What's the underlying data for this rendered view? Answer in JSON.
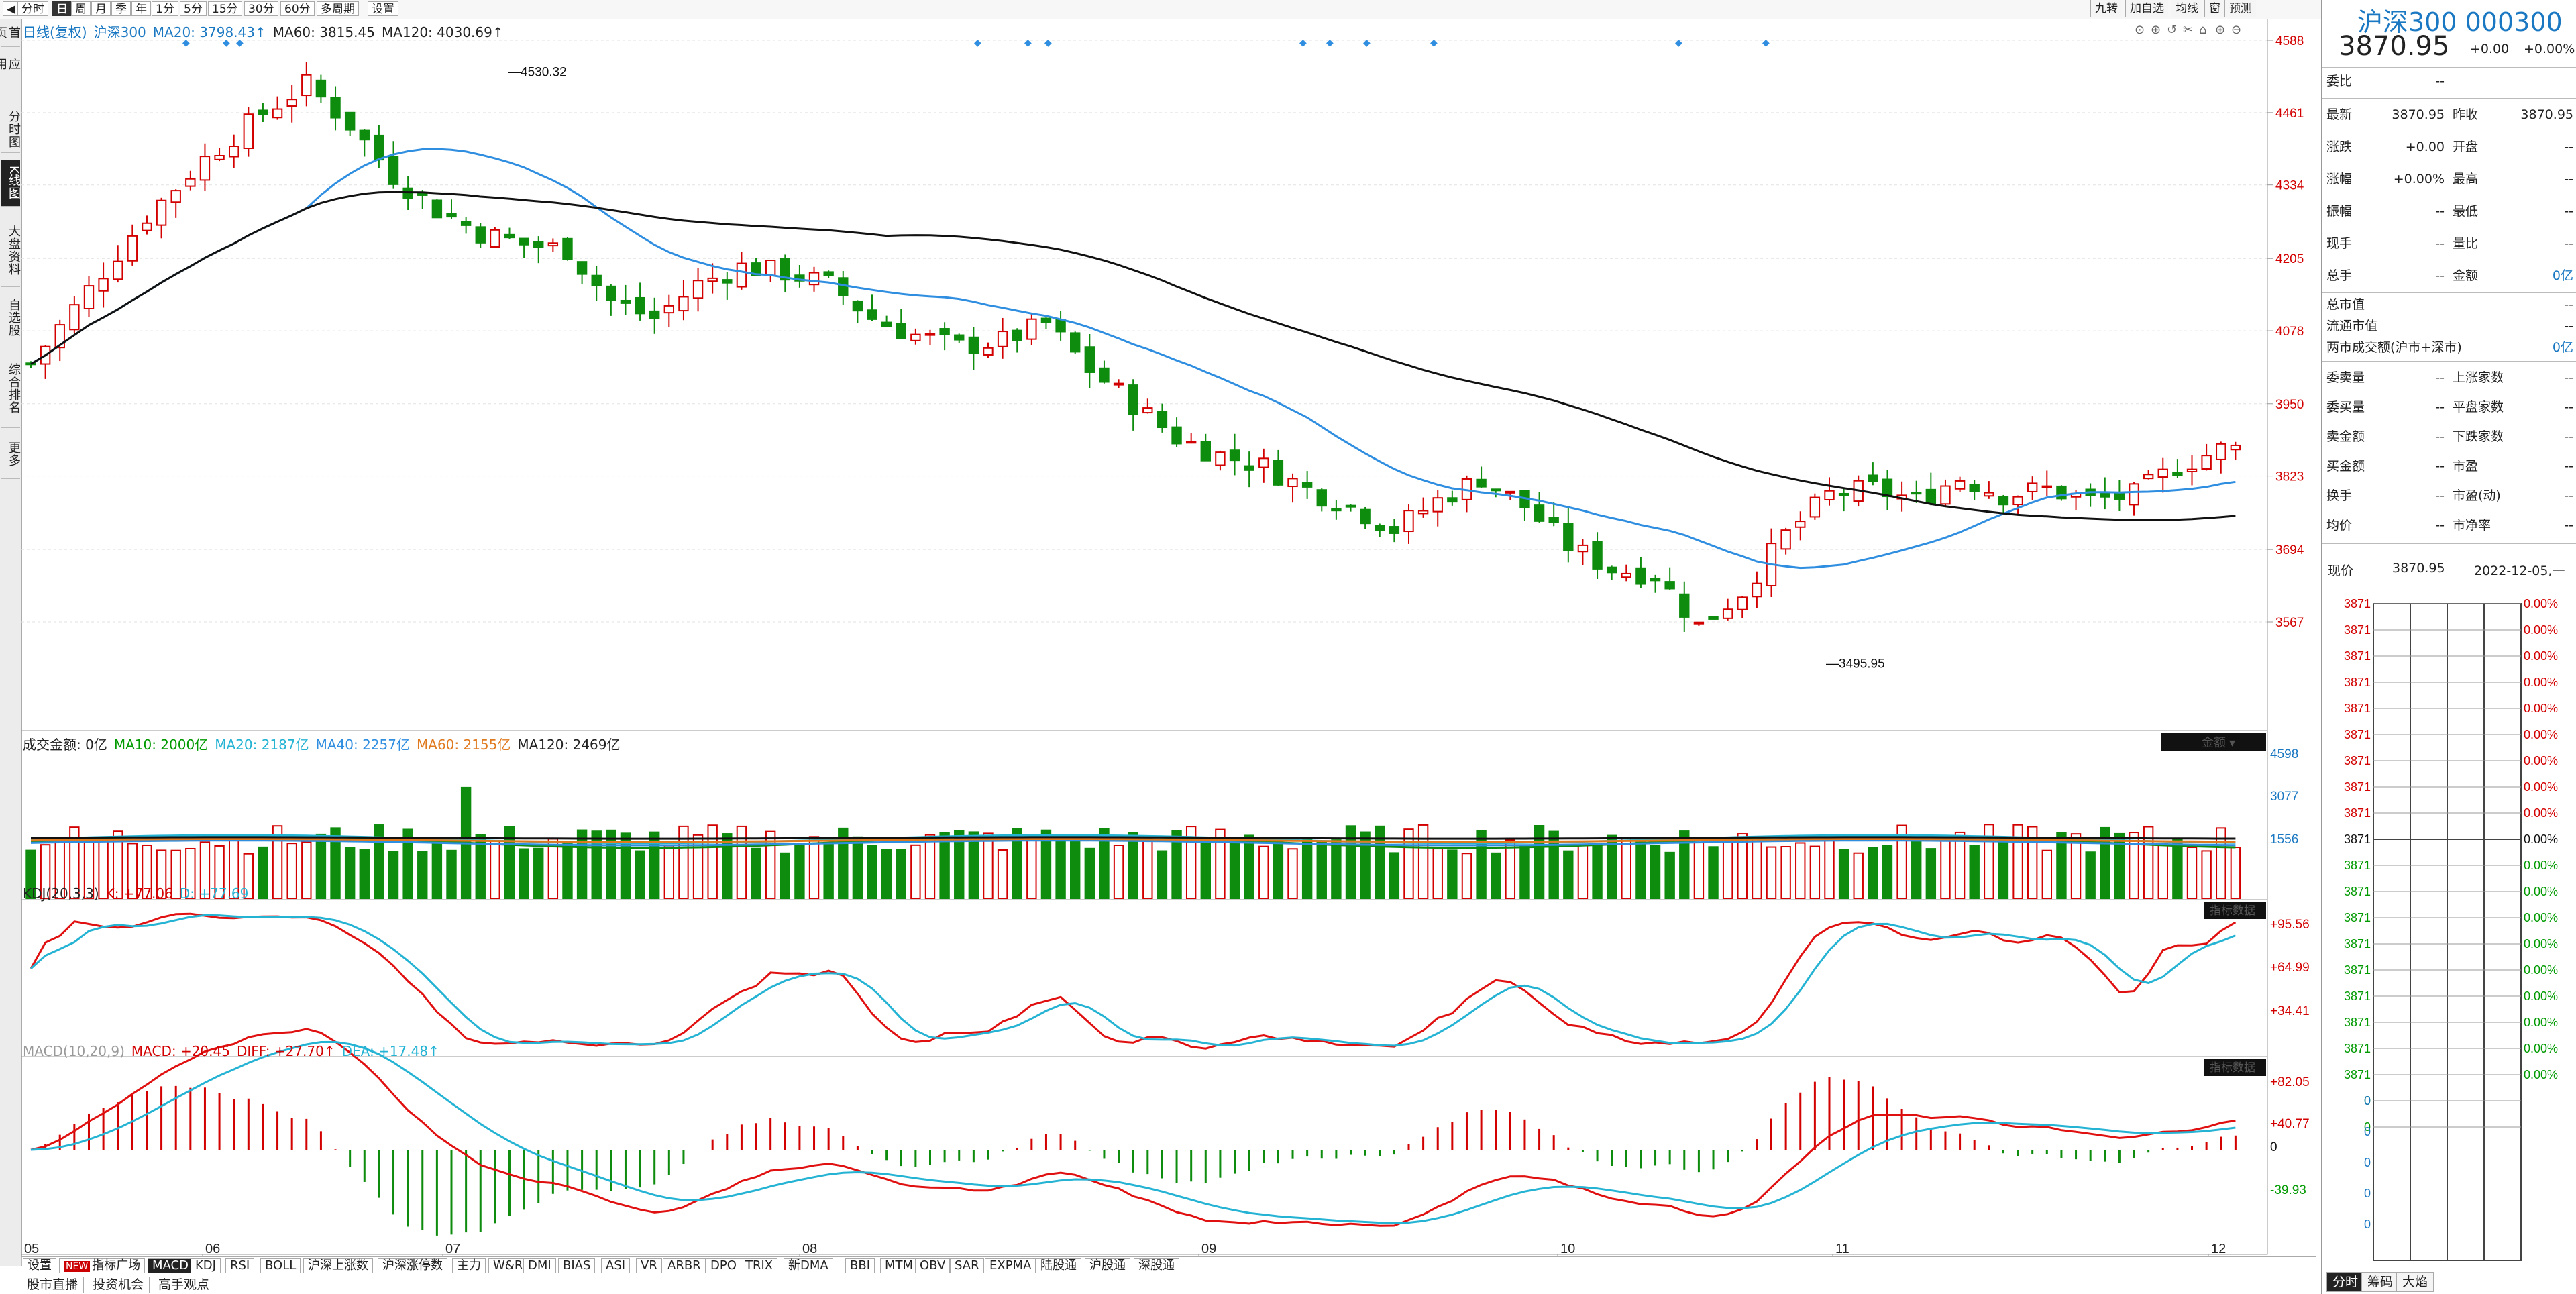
{
  "topbar": {
    "period_tabs": [
      "分时",
      "日",
      "周",
      "月",
      "季",
      "年",
      "1分",
      "5分",
      "15分",
      "30分",
      "60分",
      "多周期",
      "设置"
    ],
    "active_period": "日",
    "right_tools": [
      "九转",
      "加自选",
      "均线",
      "窗",
      "预测"
    ]
  },
  "leftbar": {
    "tabs": [
      "首页",
      "应用",
      "分时图",
      "K线图",
      "大盘资料",
      "自选股",
      "综合排名",
      "更多"
    ],
    "active": "K线图"
  },
  "kline": {
    "legend": {
      "mode": "日线(复权)",
      "name": "沪深300",
      "ma20": "MA20: 3798.43↑",
      "ma60": "MA60: 3815.45",
      "ma120": "MA120: 4030.69↑"
    },
    "high_label": "4530.32",
    "low_label": "3495.95",
    "y_ticks": [
      "4588",
      "4461",
      "4334",
      "4205",
      "4078",
      "3950",
      "3823",
      "3694",
      "3567"
    ],
    "x_ticks": [
      "05",
      "06",
      "07",
      "08",
      "09",
      "10",
      "11",
      "12"
    ],
    "colors": {
      "up": "#d30000",
      "down": "#0e8c0e",
      "ma20": "#2f8ee0",
      "ma120": "#111111",
      "ma60": "#111111"
    }
  },
  "volume": {
    "legend": {
      "label": "成交金额: 0亿",
      "ma10": "MA10: 2000亿",
      "ma20": "MA20: 2187亿",
      "ma40": "MA40: 2257亿",
      "ma60": "MA60: 2155亿",
      "ma120": "MA120: 2469亿"
    },
    "y_ticks": [
      "4598",
      "3077",
      "1556"
    ],
    "tag": "金额"
  },
  "kdj": {
    "legend": {
      "label": "KDJ(20,3,3)",
      "k": "K: +77.06",
      "d": "D: +77.69"
    },
    "y_ticks": [
      "+95.56",
      "+64.99",
      "+34.41"
    ],
    "tag": "指标数据"
  },
  "macd": {
    "legend": {
      "label": "MACD(10,20,9)",
      "macd": "MACD: +20.45",
      "diff": "DIFF: +27.70↑",
      "dea": "DEA: +17.48↑"
    },
    "y_ticks": [
      "+82.05",
      "+40.77",
      "0",
      "-39.93"
    ],
    "tag": "指标数据"
  },
  "indicator_tabs": [
    "设置",
    "指标广场",
    "MACD",
    "KDJ",
    "RSI",
    "BOLL",
    "沪深上涨数",
    "沪深涨停数",
    "主力",
    "W&R",
    "DMI",
    "BIAS",
    "ASI",
    "VR",
    "ARBR",
    "DPO",
    "TRIX",
    "新DMA",
    "BBI",
    "MTM",
    "OBV",
    "SAR",
    "EXPMA",
    "陆股通",
    "沪股通",
    "深股通"
  ],
  "indicator_active": "MACD",
  "indicator_new_badge": "NEW",
  "news_tabs": [
    "股市直播",
    "投资机会",
    "高手观点"
  ],
  "right_panel": {
    "title": "沪深300 000300",
    "price": "3870.95",
    "change": "+0.00",
    "change_pct": "+0.00%",
    "weibi_label": "委比",
    "weibi": "--",
    "rows1": [
      {
        "k": "最新",
        "v": "3870.95",
        "k2": "昨收",
        "v2": "3870.95"
      },
      {
        "k": "涨跌",
        "v": "+0.00",
        "k2": "开盘",
        "v2": "--"
      },
      {
        "k": "涨幅",
        "v": "+0.00%",
        "k2": "最高",
        "v2": "--"
      },
      {
        "k": "振幅",
        "v": "--",
        "k2": "最低",
        "v2": "--"
      },
      {
        "k": "现手",
        "v": "--",
        "k2": "量比",
        "v2": "--"
      },
      {
        "k": "总手",
        "v": "--",
        "k2": "金额",
        "v2": "0亿"
      }
    ],
    "cap": [
      {
        "k": "总市值",
        "v": "--"
      },
      {
        "k": "流通市值",
        "v": "--"
      },
      {
        "k": "两市成交额(沪市+深市)",
        "v": "0亿"
      }
    ],
    "rows2": [
      {
        "k": "委卖量",
        "v": "--",
        "k2": "上涨家数",
        "v2": "--"
      },
      {
        "k": "委买量",
        "v": "--",
        "k2": "平盘家数",
        "v2": "--"
      },
      {
        "k": "卖金额",
        "v": "--",
        "k2": "下跌家数",
        "v2": "--"
      },
      {
        "k": "买金额",
        "v": "--",
        "k2": "市盈",
        "v2": "--"
      },
      {
        "k": "换手",
        "v": "--",
        "k2": "市盈(动)",
        "v2": "--"
      },
      {
        "k": "均价",
        "v": "--",
        "k2": "市净率",
        "v2": "--"
      }
    ],
    "now_label": "现价",
    "now_value": "3870.95",
    "now_date": "2022-12-05,一",
    "mini_left": "3871",
    "mini_right": "0.00%",
    "mini_zero": "0",
    "bottom_tabs": [
      "分时",
      "筹码",
      "大焰"
    ]
  }
}
